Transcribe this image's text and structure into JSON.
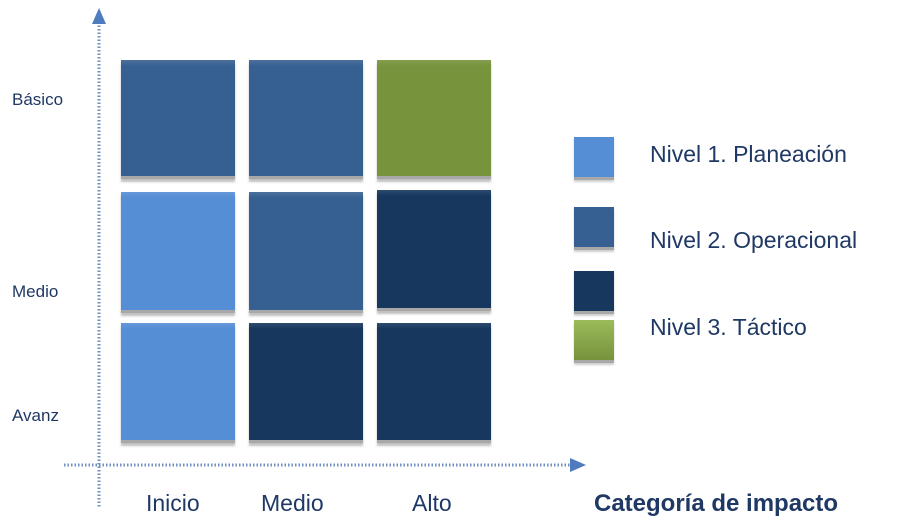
{
  "axis": {
    "y_labels": [
      "Básico",
      "Medio",
      "Avanz"
    ],
    "x_labels": [
      "Inicio",
      "Medio",
      "Alto"
    ],
    "x_title": "Categoría de impacto"
  },
  "colors": {
    "light": "#558ed5",
    "mid": "#376092",
    "dark": "#17375e",
    "green": "#77933c"
  },
  "grid": [
    [
      "mid",
      "mid",
      "green"
    ],
    [
      "light",
      "mid",
      "dark"
    ],
    [
      "light",
      "dark",
      "dark"
    ]
  ],
  "legend": [
    {
      "label": "Nivel 1. Planeación",
      "color": "light"
    },
    {
      "label": "Nivel 2. Operacional",
      "color": "mid"
    },
    {
      "label": "",
      "color": "dark"
    },
    {
      "label": "Nivel 3. Táctico",
      "color": "green"
    }
  ]
}
